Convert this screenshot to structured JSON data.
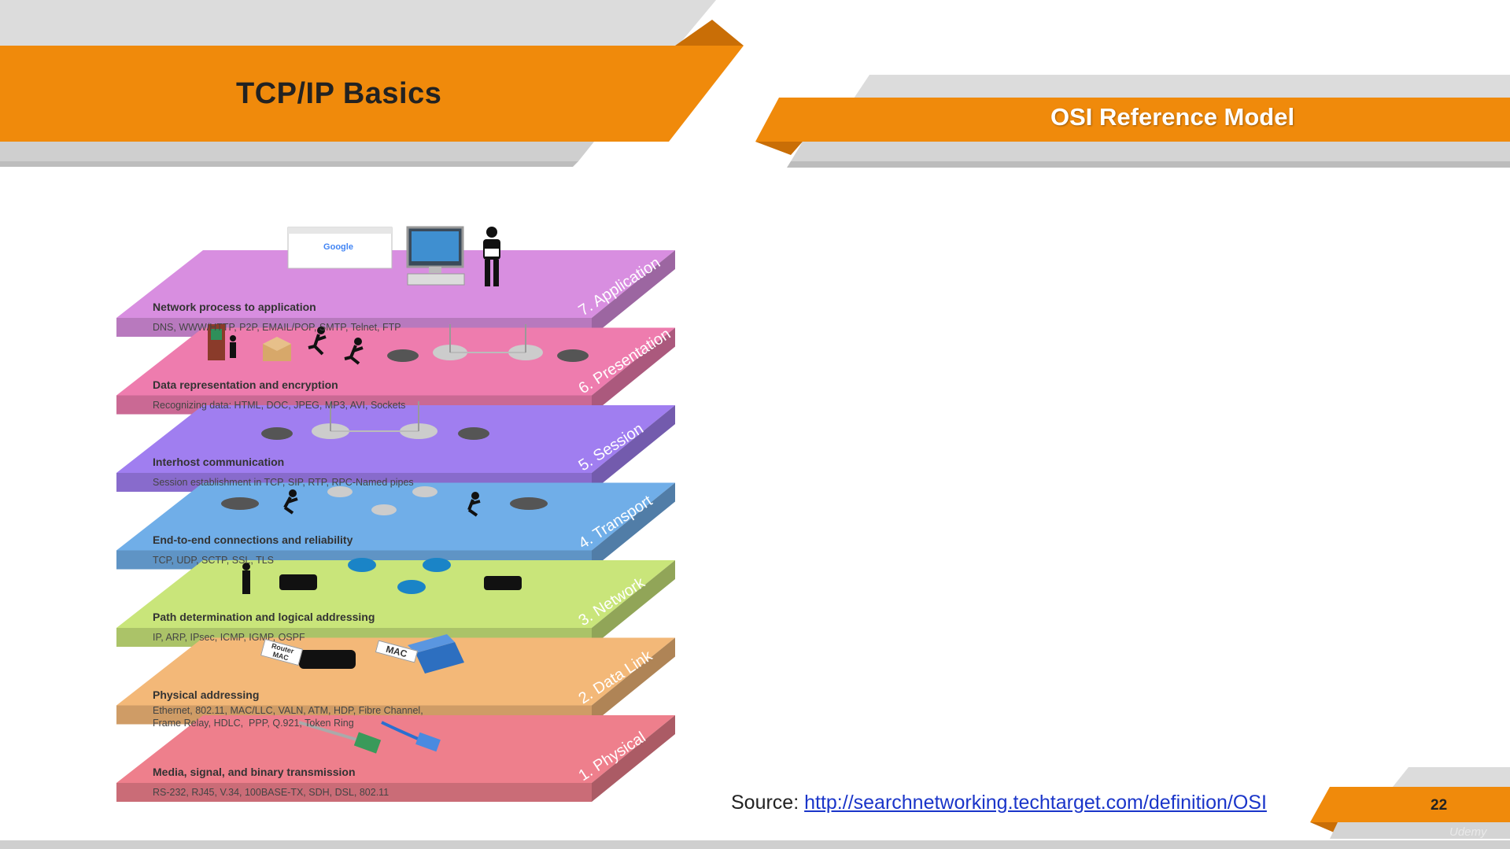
{
  "header": {
    "title": "TCP/IP Basics",
    "subtitle": "OSI Reference Model"
  },
  "colors": {
    "accent_orange": "#f08a0b",
    "banner_gray": "#d6d6d6",
    "link_blue": "#1a35c9"
  },
  "diagram": {
    "layers": [
      {
        "name": "7. Application",
        "description": "Network process to application",
        "protocols": "DNS, WWW/HTTP, P2P, EMAIL/POP, SMTP, Telnet, FTP",
        "color": "#d88ee0"
      },
      {
        "name": "6. Presentation",
        "description": "Data representation and encryption",
        "protocols": "Recognizing data: HTML, DOC, JPEG, MP3, AVI, Sockets",
        "color": "#ee7cae"
      },
      {
        "name": "5. Session",
        "description": "Interhost communication",
        "protocols": "Session establishment in TCP, SIP, RTP, RPC-Named pipes",
        "color": "#a07ef0"
      },
      {
        "name": "4. Transport",
        "description": "End-to-end connections and reliability",
        "protocols": "TCP, UDP, SCTP, SSL, TLS",
        "color": "#70aee8"
      },
      {
        "name": "3. Network",
        "description": "Path determination and logical addressing",
        "protocols": "IP, ARP, IPsec, ICMP, IGMP, OSPF",
        "color": "#c9e57a"
      },
      {
        "name": "2. Data Link",
        "description": "Physical addressing",
        "protocols": "Ethernet, 802.11, MAC/LLC, VALN, ATM, HDP, Fibre Channel,\nFrame Relay, HDLC,  PPP, Q.921, Token Ring",
        "color": "#f3b878"
      },
      {
        "name": "1. Physical",
        "description": "Media, signal, and binary transmission",
        "protocols": "RS-232, RJ45, V.34, 100BASE-TX, SDH, DSL, 802.11",
        "color": "#ee7f8c"
      }
    ],
    "tags": {
      "router_mac": "Router MAC",
      "mac": "MAC",
      "google": "Google"
    },
    "icons": [
      "browser-window-icon",
      "monitor-icon",
      "person-icon",
      "vending-machine-icon",
      "package-icon",
      "running-person-icon",
      "wireless-router-icon",
      "access-point-icon",
      "router-icon",
      "switch-icon",
      "ethernet-cable-icon"
    ]
  },
  "footer": {
    "source_label": "Source: ",
    "source_url": "http://searchnetworking.techtarget.com/definition/OSI",
    "page_number": "22",
    "watermark": "Udemy"
  }
}
